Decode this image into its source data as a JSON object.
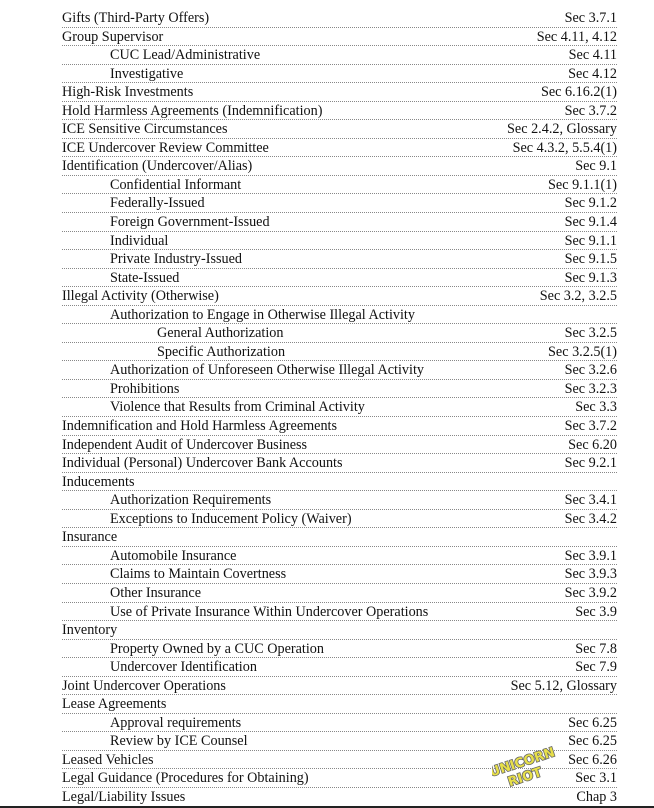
{
  "entries": [
    {
      "term": "Gifts (Third-Party Offers)",
      "ref": "Sec 3.7.1",
      "level": 0
    },
    {
      "term": "Group Supervisor",
      "ref": "Sec 4.11, 4.12",
      "level": 0
    },
    {
      "term": "CUC Lead/Administrative",
      "ref": "Sec 4.11",
      "level": 1
    },
    {
      "term": "Investigative",
      "ref": "Sec 4.12",
      "level": 1
    },
    {
      "term": "High-Risk Investments",
      "ref": "Sec 6.16.2(1)",
      "level": 0
    },
    {
      "term": "Hold Harmless Agreements (Indemnification)",
      "ref": "Sec 3.7.2",
      "level": 0
    },
    {
      "term": "ICE Sensitive Circumstances",
      "ref": "Sec 2.4.2, Glossary",
      "level": 0
    },
    {
      "term": "ICE Undercover Review Committee",
      "ref": "Sec 4.3.2, 5.5.4(1)",
      "level": 0
    },
    {
      "term": "Identification (Undercover/Alias)",
      "ref": "Sec 9.1",
      "level": 0
    },
    {
      "term": "Confidential Informant",
      "ref": "Sec 9.1.1(1)",
      "level": 1
    },
    {
      "term": "Federally-Issued",
      "ref": "Sec 9.1.2",
      "level": 1
    },
    {
      "term": "Foreign Government-Issued",
      "ref": "Sec 9.1.4",
      "level": 1
    },
    {
      "term": "Individual",
      "ref": "Sec 9.1.1",
      "level": 1
    },
    {
      "term": "Private Industry-Issued",
      "ref": "Sec 9.1.5",
      "level": 1
    },
    {
      "term": "State-Issued",
      "ref": "Sec 9.1.3",
      "level": 1
    },
    {
      "term": "Illegal Activity (Otherwise)",
      "ref": "Sec 3.2, 3.2.5",
      "level": 0
    },
    {
      "term": "Authorization to Engage in Otherwise Illegal Activity",
      "ref": "",
      "level": 1
    },
    {
      "term": "General Authorization",
      "ref": "Sec 3.2.5",
      "level": 2
    },
    {
      "term": "Specific Authorization",
      "ref": "Sec 3.2.5(1)",
      "level": 2
    },
    {
      "term": "Authorization of Unforeseen Otherwise Illegal Activity",
      "ref": "Sec 3.2.6",
      "level": 1
    },
    {
      "term": "Prohibitions",
      "ref": "Sec 3.2.3",
      "level": 1
    },
    {
      "term": "Violence that Results from Criminal Activity",
      "ref": "Sec 3.3",
      "level": 1
    },
    {
      "term": "Indemnification and Hold Harmless Agreements",
      "ref": "Sec 3.7.2",
      "level": 0
    },
    {
      "term": "Independent Audit of Undercover Business",
      "ref": "Sec 6.20",
      "level": 0
    },
    {
      "term": "Individual (Personal) Undercover Bank Accounts",
      "ref": "Sec 9.2.1",
      "level": 0
    },
    {
      "term": "Inducements",
      "ref": "",
      "level": 0
    },
    {
      "term": "Authorization Requirements",
      "ref": "Sec 3.4.1",
      "level": 1
    },
    {
      "term": "Exceptions to Inducement Policy (Waiver)",
      "ref": "Sec 3.4.2",
      "level": 1
    },
    {
      "term": "Insurance",
      "ref": "",
      "level": 0
    },
    {
      "term": "Automobile Insurance",
      "ref": "Sec 3.9.1",
      "level": 1
    },
    {
      "term": "Claims to Maintain Covertness",
      "ref": "Sec 3.9.3",
      "level": 1
    },
    {
      "term": "Other Insurance",
      "ref": "Sec 3.9.2",
      "level": 1
    },
    {
      "term": "Use of Private Insurance Within Undercover Operations",
      "ref": "Sec 3.9",
      "level": 1
    },
    {
      "term": "Inventory",
      "ref": "",
      "level": 0
    },
    {
      "term": "Property Owned by a CUC Operation",
      "ref": "Sec 7.8",
      "level": 1
    },
    {
      "term": "Undercover Identification",
      "ref": "Sec 7.9",
      "level": 1
    },
    {
      "term": "Joint Undercover Operations",
      "ref": "Sec 5.12, Glossary",
      "level": 0
    },
    {
      "term": "Lease Agreements",
      "ref": "",
      "level": 0
    },
    {
      "term": "Approval requirements",
      "ref": "Sec 6.25",
      "level": 1
    },
    {
      "term": "Review by ICE Counsel",
      "ref": "Sec 6.25",
      "level": 1
    },
    {
      "term": "Leased Vehicles",
      "ref": "Sec 6.26",
      "level": 0
    },
    {
      "term": "Legal Guidance (Procedures for Obtaining)",
      "ref": "Sec 3.1",
      "level": 0
    },
    {
      "term": "Legal/Liability Issues",
      "ref": "Chap 3",
      "level": 0
    }
  ],
  "watermark": {
    "text": "UNICORN RIOT",
    "colors": {
      "fill": "#e8e04a",
      "outline": "#666666"
    }
  }
}
